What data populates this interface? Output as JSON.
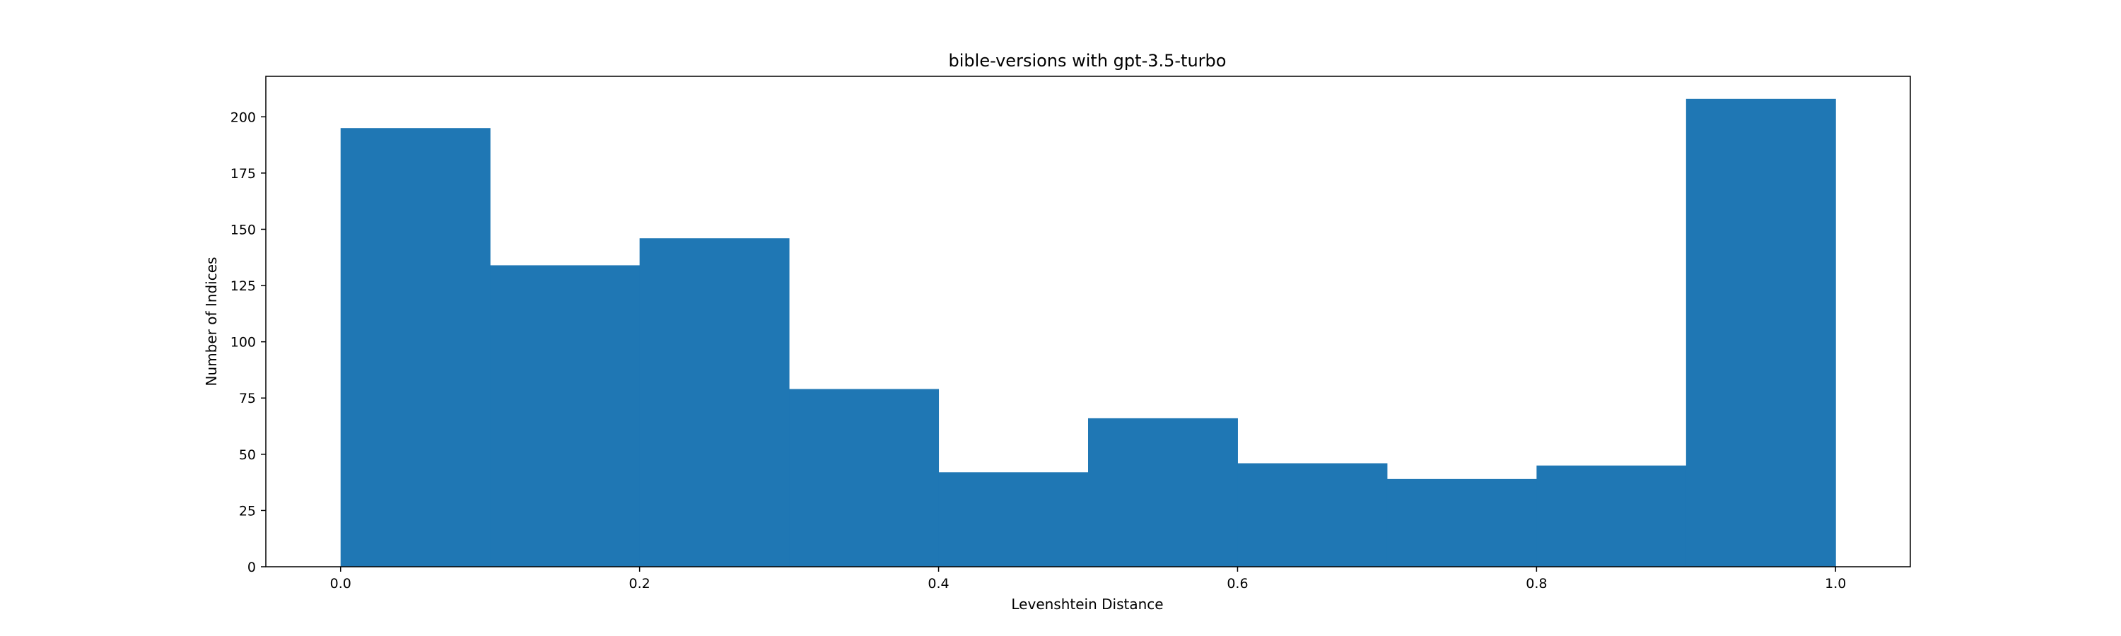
{
  "chart_data": {
    "type": "bar",
    "title": "bible-versions with gpt-3.5-turbo",
    "xlabel": "Levenshtein Distance",
    "ylabel": "Number of Indices",
    "bins": [
      {
        "x0": 0.0,
        "x1": 0.1,
        "value": 195
      },
      {
        "x0": 0.1,
        "x1": 0.2,
        "value": 134
      },
      {
        "x0": 0.2,
        "x1": 0.3,
        "value": 146
      },
      {
        "x0": 0.3,
        "x1": 0.4,
        "value": 79
      },
      {
        "x0": 0.4,
        "x1": 0.5,
        "value": 42
      },
      {
        "x0": 0.5,
        "x1": 0.6,
        "value": 66
      },
      {
        "x0": 0.6,
        "x1": 0.7,
        "value": 46
      },
      {
        "x0": 0.7,
        "x1": 0.8,
        "value": 39
      },
      {
        "x0": 0.8,
        "x1": 0.9,
        "value": 45
      },
      {
        "x0": 0.9,
        "x1": 1.0,
        "value": 208
      }
    ],
    "xlim": [
      -0.05,
      1.05
    ],
    "ylim": [
      0,
      218
    ],
    "xticks": [
      0.0,
      0.2,
      0.4,
      0.6,
      0.8,
      1.0
    ],
    "xtick_labels": [
      "0.0",
      "0.2",
      "0.4",
      "0.6",
      "0.8",
      "1.0"
    ],
    "yticks": [
      0,
      25,
      50,
      75,
      100,
      125,
      150,
      175,
      200
    ],
    "ytick_labels": [
      "0",
      "25",
      "50",
      "75",
      "100",
      "125",
      "150",
      "175",
      "200"
    ],
    "bar_color": "#1f77b4",
    "grid": false,
    "legend": "none"
  }
}
